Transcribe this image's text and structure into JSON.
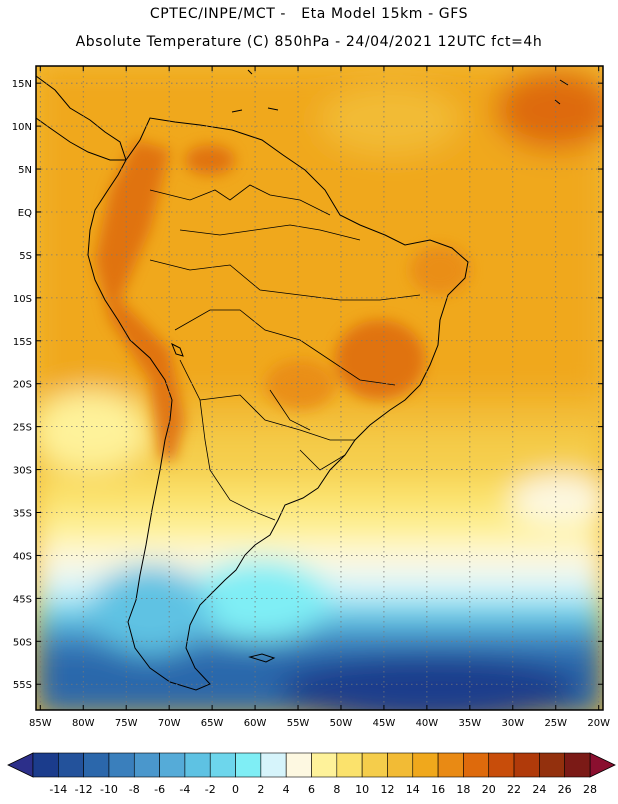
{
  "header": {
    "line1": "CPTEC/INPE/MCT -   Eta Model 15km - GFS",
    "line2": "Absolute Temperature (C) 850hPa - 24/04/2021 12UTC fct=4h"
  },
  "map": {
    "lat_labels": [
      "15N",
      "10N",
      "5N",
      "EQ",
      "5S",
      "10S",
      "15S",
      "20S",
      "25S",
      "30S",
      "35S",
      "40S",
      "45S",
      "50S",
      "55S"
    ],
    "lat_values": [
      15,
      10,
      5,
      0,
      -5,
      -10,
      -15,
      -20,
      -25,
      -30,
      -35,
      -40,
      -45,
      -50,
      -55
    ],
    "lon_labels": [
      "85W",
      "80W",
      "75W",
      "70W",
      "65W",
      "60W",
      "55W",
      "50W",
      "45W",
      "40W",
      "35W",
      "30W",
      "25W",
      "20W"
    ],
    "lon_values": [
      -85,
      -80,
      -75,
      -70,
      -65,
      -60,
      -55,
      -50,
      -45,
      -40,
      -35,
      -30,
      -25,
      -20
    ],
    "extent": {
      "lon_min": -85.5,
      "lon_max": -19.5,
      "lat_min": -58,
      "lat_max": 17
    }
  },
  "legend": {
    "labels": [
      "-14",
      "-12",
      "-10",
      "-8",
      "-6",
      "-4",
      "-2",
      "0",
      "2",
      "4",
      "6",
      "8",
      "10",
      "12",
      "14",
      "16",
      "18",
      "20",
      "22",
      "24",
      "26",
      "28"
    ],
    "colors": [
      "#1b3c8c",
      "#23529b",
      "#2b67ab",
      "#3a7fbc",
      "#4a97cc",
      "#55abd8",
      "#5ec2e3",
      "#6dd6ec",
      "#7feef5",
      "#d6f4fb",
      "#fdf8e1",
      "#fef29a",
      "#fbe26c",
      "#f5cd4b",
      "#f2bb35",
      "#f0a81c",
      "#e98a14",
      "#de6a0c",
      "#c84d0a",
      "#b03a0a",
      "#93300d",
      "#7b1a16"
    ],
    "end_low_color": "#2c2f8a",
    "end_high_color": "#8a0f2f"
  }
}
